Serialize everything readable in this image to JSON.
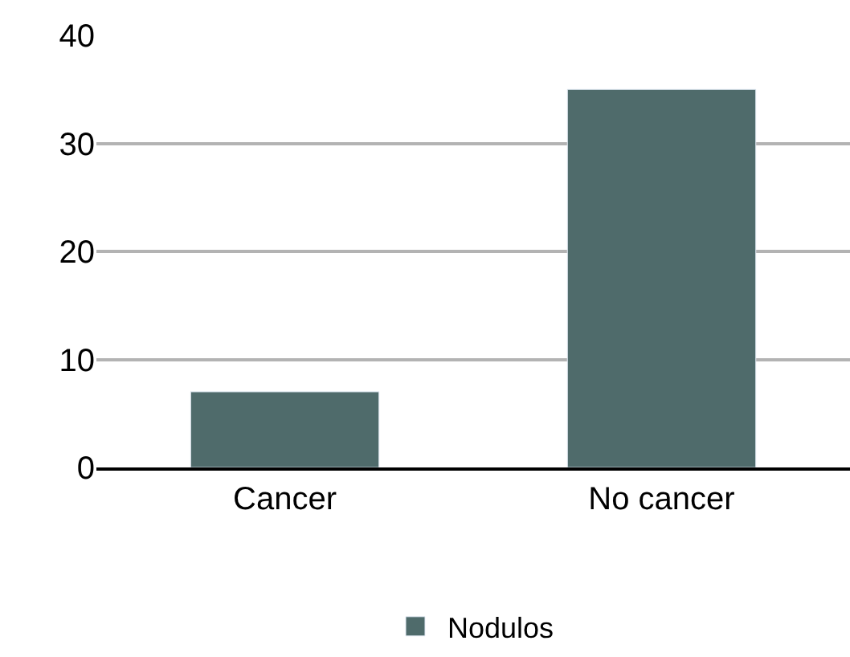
{
  "chart_data": {
    "type": "bar",
    "categories": [
      "Cancer",
      "No cancer"
    ],
    "series": [
      {
        "name": "Nodulos",
        "color": "#4f6b6b",
        "values": [
          7,
          35
        ]
      }
    ],
    "ylim": [
      0,
      40
    ],
    "yticks": [
      0,
      10,
      20,
      30,
      40
    ],
    "grid": "y",
    "legend": "bottom"
  }
}
